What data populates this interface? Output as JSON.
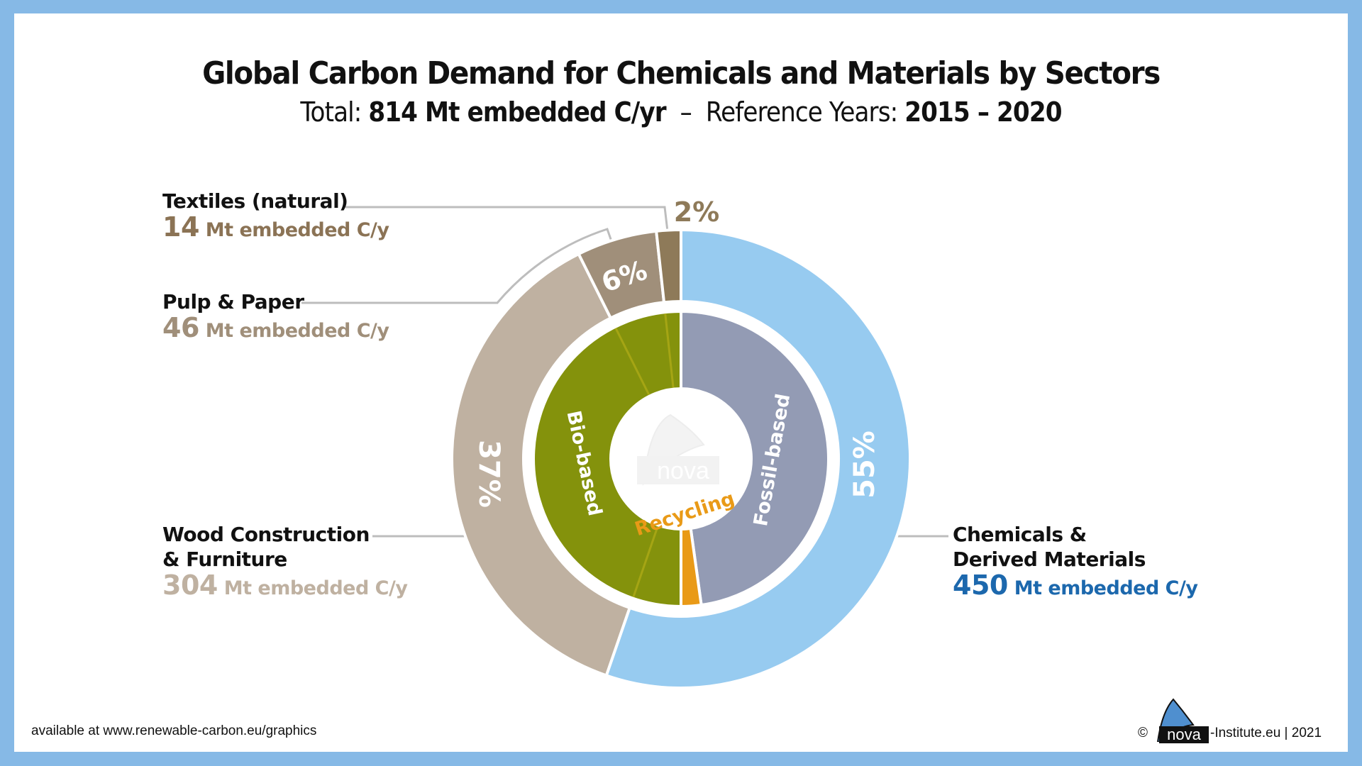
{
  "header": {
    "title": "Global Carbon Demand for Chemicals and Materials by Sectors",
    "subtitle_prefix": "Total: ",
    "subtitle_total": "814 Mt embedded C/yr",
    "subtitle_sep": "  –  Reference Years: ",
    "subtitle_years": "2015 – 2020"
  },
  "chart_data": {
    "type": "pie",
    "variant": "nested-donut",
    "title": "Global Carbon Demand for Chemicals and Materials by Sectors",
    "subtitle": "Total: 814 Mt embedded C/yr – Reference Years: 2015 – 2020",
    "total": 814,
    "unit": "Mt embedded C/y",
    "outer_ring": [
      {
        "name": "Chemicals & Derived Materials",
        "value": 450,
        "percent_label": "55%",
        "color": "#97cbf0"
      },
      {
        "name": "Wood Construction & Furniture",
        "value": 304,
        "percent_label": "37%",
        "color": "#bfb1a1"
      },
      {
        "name": "Pulp & Paper",
        "value": 46,
        "percent_label": "6%",
        "color": "#a08f7a"
      },
      {
        "name": "Textiles (natural)",
        "value": 14,
        "percent_label": "2%",
        "color": "#8e7a59"
      }
    ],
    "inner_ring": [
      {
        "name": "Fossil-based",
        "share": 0.478,
        "color": "#939bb4"
      },
      {
        "name": "Recycling",
        "share": 0.022,
        "color": "#e99a17"
      },
      {
        "name": "Bio-based",
        "share": 0.5,
        "color": "#84920c"
      }
    ]
  },
  "labels": {
    "textiles": {
      "name": "Textiles (natural)",
      "num": "14",
      "unit": " Mt embedded C/y",
      "color": "#8b7355"
    },
    "pulp": {
      "name": "Pulp & Paper",
      "num": "46",
      "unit": " Mt embedded C/y",
      "color": "#a08f7a"
    },
    "wood": {
      "name_line1": "Wood Construction",
      "name_line2": "& Furniture",
      "num": "304",
      "unit": " Mt embedded C/y",
      "color": "#bfb1a1"
    },
    "chemicals": {
      "name_line1": "Chemicals &",
      "name_line2": "Derived Materials",
      "num": "450",
      "unit": " Mt embedded C/y",
      "color": "#1c68ad"
    }
  },
  "center_logo": "nova",
  "footer": {
    "left": "available at www.renewable-carbon.eu/graphics",
    "copyright": "©",
    "logo_text": "nova",
    "right": "-Institute.eu | 2021"
  },
  "colors": {
    "border": "#86b9e6",
    "leader_line": "#bdbdbd"
  }
}
